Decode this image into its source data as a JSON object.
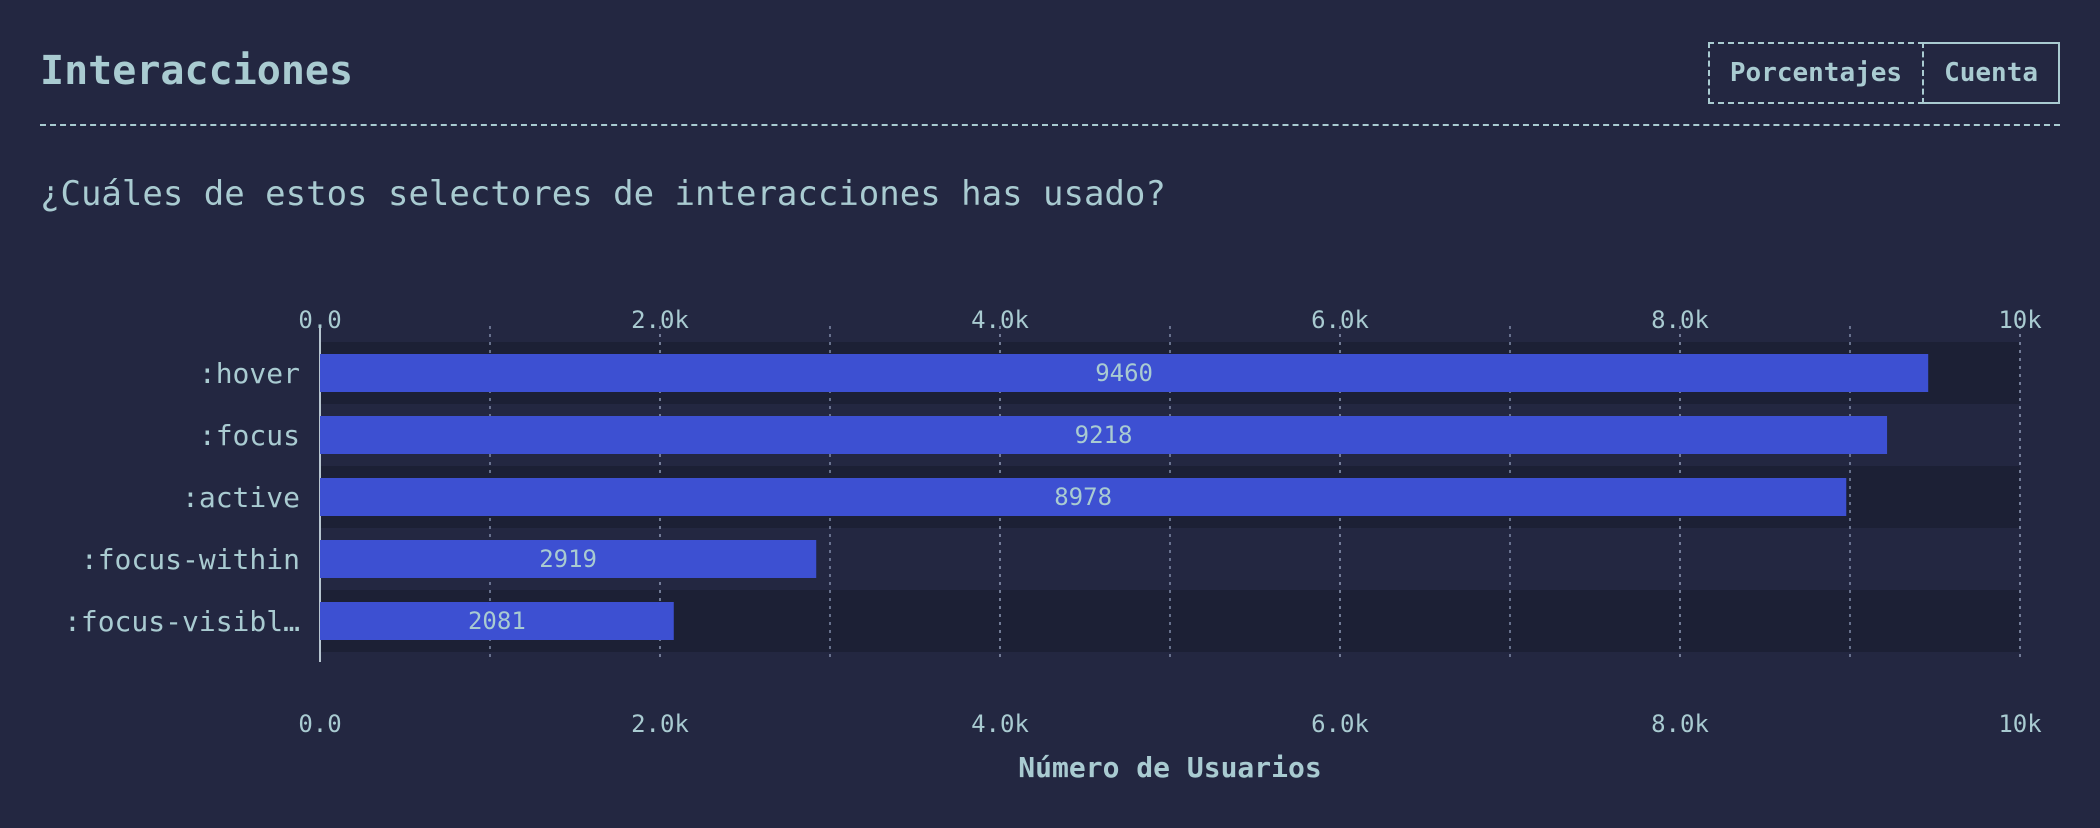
{
  "header": {
    "title": "Interacciones",
    "toggle": {
      "percentages_label": "Porcentajes",
      "count_label": "Cuenta"
    }
  },
  "question": "¿Cuáles de estos selectores de interacciones has usado?",
  "colors": {
    "background": "#232741",
    "text": "#a9cbd1",
    "bar": "#3d50d2",
    "row_band_dark": "#1c2035",
    "row_band_light": "#232741"
  },
  "chart_data": {
    "type": "bar",
    "orientation": "horizontal",
    "categories": [
      ":hover",
      ":focus",
      ":active",
      ":focus-within",
      ":focus-visibl…"
    ],
    "values": [
      9460,
      9218,
      8978,
      2919,
      2081
    ],
    "data_labels": [
      "9460",
      "9218",
      "8978",
      "2919",
      "2081"
    ],
    "xlabel": "Número de Usuarios",
    "xlim": [
      0,
      10000
    ],
    "ticks": [
      0,
      2000,
      4000,
      6000,
      8000,
      10000
    ],
    "tick_labels": [
      "0.0",
      "2.0k",
      "4.0k",
      "6.0k",
      "8.0k",
      "10k"
    ],
    "minor_gridlines": [
      1000,
      3000,
      5000,
      7000,
      9000
    ],
    "grid": true,
    "axis_labels_top_and_bottom": true
  }
}
